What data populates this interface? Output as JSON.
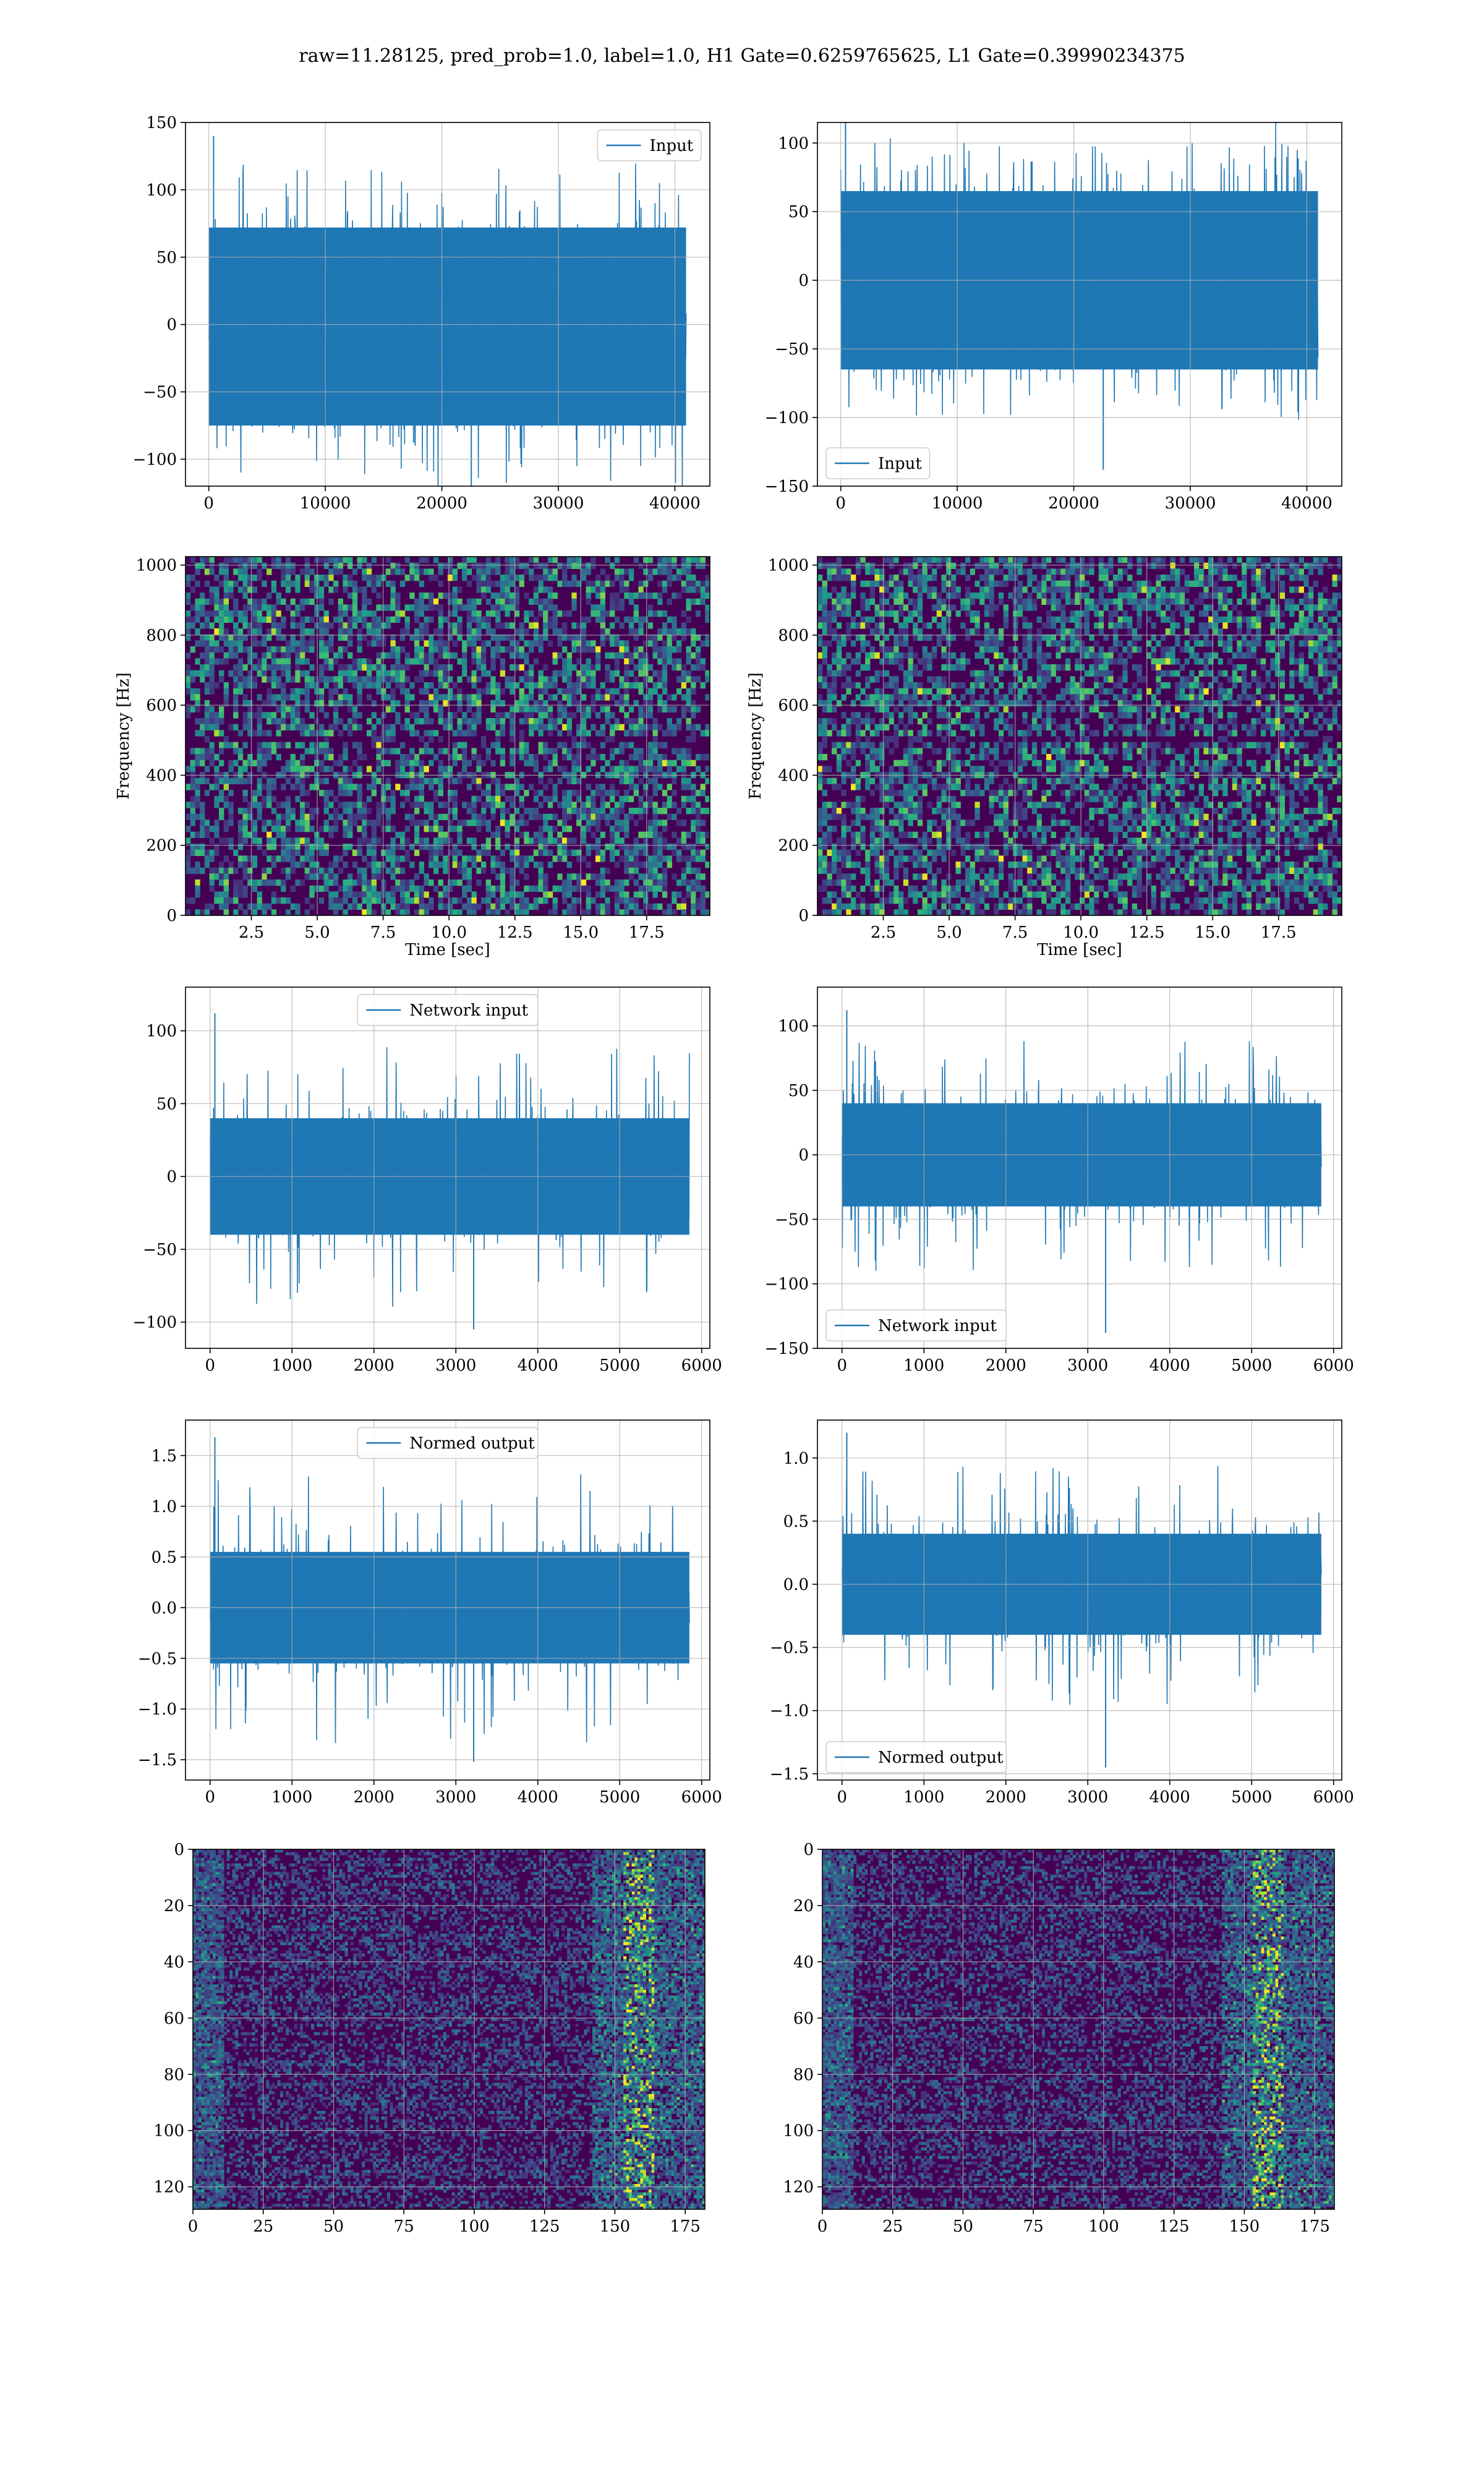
{
  "suptitle": "raw=11.28125, pred_prob=1.0, label=1.0, H1 Gate=0.6259765625, L1 Gate=0.39990234375",
  "colors": {
    "line": "#1f77b4",
    "grid": "#b0b0b0",
    "viridis_dark": "#440154",
    "viridis_bright": "#fde725"
  },
  "chart_data": [
    {
      "type": "line",
      "series": [
        {
          "name": "Input",
          "points": 40960
        }
      ],
      "xlim": [
        -2000,
        43000
      ],
      "ylim": [
        -120,
        150
      ],
      "xticks": [
        0,
        10000,
        20000,
        30000,
        40000
      ],
      "yticks": [
        -100,
        -50,
        0,
        50,
        100,
        150
      ],
      "xticklabels": [
        "0",
        "10000",
        "20000",
        "30000",
        "40000"
      ],
      "yticklabels": [
        "−100",
        "−50",
        "0",
        "50",
        "100",
        "150"
      ],
      "band": [
        -75,
        72
      ],
      "spike_max": 140,
      "spike_min": -122,
      "legend": "top-right",
      "grid": true,
      "xlabel": "",
      "ylabel": ""
    },
    {
      "type": "line",
      "series": [
        {
          "name": "Input",
          "points": 40960
        }
      ],
      "xlim": [
        -2000,
        43000
      ],
      "ylim": [
        -150,
        115
      ],
      "xticks": [
        0,
        10000,
        20000,
        30000,
        40000
      ],
      "yticks": [
        -150,
        -100,
        -50,
        0,
        50,
        100
      ],
      "xticklabels": [
        "0",
        "10000",
        "20000",
        "30000",
        "40000"
      ],
      "yticklabels": [
        "−150",
        "−100",
        "−50",
        "0",
        "50",
        "100"
      ],
      "band": [
        -65,
        65
      ],
      "spike_max": 118,
      "spike_min": -138,
      "legend": "bottom-left",
      "grid": true,
      "xlabel": "",
      "ylabel": ""
    },
    {
      "type": "heatmap",
      "xlim": [
        0,
        19.9
      ],
      "ylim": [
        0,
        1024
      ],
      "xticks": [
        2.5,
        5.0,
        7.5,
        10.0,
        12.5,
        15.0,
        17.5
      ],
      "yticks": [
        0,
        200,
        400,
        600,
        800,
        1000
      ],
      "xticklabels": [
        "2.5",
        "5.0",
        "7.5",
        "10.0",
        "12.5",
        "15.0",
        "17.5"
      ],
      "yticklabels": [
        "0",
        "200",
        "400",
        "600",
        "800",
        "1000"
      ],
      "xlabel": "Time [sec]",
      "ylabel": "Frequency [Hz]",
      "colormap": "viridis",
      "grid": true
    },
    {
      "type": "heatmap",
      "xlim": [
        0,
        19.9
      ],
      "ylim": [
        0,
        1024
      ],
      "xticks": [
        2.5,
        5.0,
        7.5,
        10.0,
        12.5,
        15.0,
        17.5
      ],
      "yticks": [
        0,
        200,
        400,
        600,
        800,
        1000
      ],
      "xticklabels": [
        "2.5",
        "5.0",
        "7.5",
        "10.0",
        "12.5",
        "15.0",
        "17.5"
      ],
      "yticklabels": [
        "0",
        "200",
        "400",
        "600",
        "800",
        "1000"
      ],
      "xlabel": "Time [sec]",
      "ylabel": "Frequency [Hz]",
      "colormap": "viridis",
      "grid": true
    },
    {
      "type": "line",
      "series": [
        {
          "name": "Network input",
          "points": 5850
        }
      ],
      "xlim": [
        -300,
        6100
      ],
      "ylim": [
        -118,
        130
      ],
      "xticks": [
        0,
        1000,
        2000,
        3000,
        4000,
        5000,
        6000
      ],
      "yticks": [
        -100,
        -50,
        0,
        50,
        100
      ],
      "xticklabels": [
        "0",
        "1000",
        "2000",
        "3000",
        "4000",
        "5000",
        "6000"
      ],
      "yticklabels": [
        "−100",
        "−50",
        "0",
        "50",
        "100"
      ],
      "band": [
        -40,
        40
      ],
      "spike_max": 112,
      "spike_min": -105,
      "legend": "top-center",
      "grid": true,
      "xlabel": "",
      "ylabel": ""
    },
    {
      "type": "line",
      "series": [
        {
          "name": "Network input",
          "points": 5850
        }
      ],
      "xlim": [
        -300,
        6100
      ],
      "ylim": [
        -150,
        130
      ],
      "xticks": [
        0,
        1000,
        2000,
        3000,
        4000,
        5000,
        6000
      ],
      "yticks": [
        -150,
        -100,
        -50,
        0,
        50,
        100
      ],
      "xticklabels": [
        "0",
        "1000",
        "2000",
        "3000",
        "4000",
        "5000",
        "6000"
      ],
      "yticklabels": [
        "−150",
        "−100",
        "−50",
        "0",
        "50",
        "100"
      ],
      "band": [
        -40,
        40
      ],
      "spike_max": 112,
      "spike_min": -138,
      "legend": "bottom-left",
      "grid": true,
      "xlabel": "",
      "ylabel": ""
    },
    {
      "type": "line",
      "series": [
        {
          "name": "Normed output",
          "points": 5850
        }
      ],
      "xlim": [
        -300,
        6100
      ],
      "ylim": [
        -1.7,
        1.85
      ],
      "xticks": [
        0,
        1000,
        2000,
        3000,
        4000,
        5000,
        6000
      ],
      "yticks": [
        -1.5,
        -1.0,
        -0.5,
        0.0,
        0.5,
        1.0,
        1.5
      ],
      "xticklabels": [
        "0",
        "1000",
        "2000",
        "3000",
        "4000",
        "5000",
        "6000"
      ],
      "yticklabels": [
        "−1.5",
        "−1.0",
        "−0.5",
        "0.0",
        "0.5",
        "1.0",
        "1.5"
      ],
      "band": [
        -0.55,
        0.55
      ],
      "spike_max": 1.68,
      "spike_min": -1.52,
      "legend": "top-center",
      "grid": true,
      "xlabel": "",
      "ylabel": ""
    },
    {
      "type": "line",
      "series": [
        {
          "name": "Normed output",
          "points": 5850
        }
      ],
      "xlim": [
        -300,
        6100
      ],
      "ylim": [
        -1.55,
        1.3
      ],
      "xticks": [
        0,
        1000,
        2000,
        3000,
        4000,
        5000,
        6000
      ],
      "yticks": [
        -1.5,
        -1.0,
        -0.5,
        0.0,
        0.5,
        1.0
      ],
      "xticklabels": [
        "0",
        "1000",
        "2000",
        "3000",
        "4000",
        "5000",
        "6000"
      ],
      "yticklabels": [
        "−1.5",
        "−1.0",
        "−0.5",
        "0.0",
        "0.5",
        "1.0"
      ],
      "band": [
        -0.4,
        0.4
      ],
      "spike_max": 1.2,
      "spike_min": -1.45,
      "legend": "bottom-left",
      "grid": true,
      "xlabel": "",
      "ylabel": ""
    },
    {
      "type": "heatmap",
      "xlim": [
        0,
        182
      ],
      "ylim": [
        128,
        0
      ],
      "xticks": [
        0,
        25,
        50,
        75,
        100,
        125,
        150,
        175
      ],
      "yticks": [
        0,
        20,
        40,
        60,
        80,
        100,
        120
      ],
      "xticklabels": [
        "0",
        "25",
        "50",
        "75",
        "100",
        "125",
        "150",
        "175"
      ],
      "yticklabels": [
        "0",
        "20",
        "40",
        "60",
        "80",
        "100",
        "120"
      ],
      "colormap": "viridis",
      "grid": true,
      "xlabel": "",
      "ylabel": ""
    },
    {
      "type": "heatmap",
      "xlim": [
        0,
        182
      ],
      "ylim": [
        128,
        0
      ],
      "xticks": [
        0,
        25,
        50,
        75,
        100,
        125,
        150,
        175
      ],
      "yticks": [
        0,
        20,
        40,
        60,
        80,
        100,
        120
      ],
      "xticklabels": [
        "0",
        "25",
        "50",
        "75",
        "100",
        "125",
        "150",
        "175"
      ],
      "yticklabels": [
        "0",
        "20",
        "40",
        "60",
        "80",
        "100",
        "120"
      ],
      "colormap": "viridis",
      "grid": true,
      "xlabel": "",
      "ylabel": ""
    }
  ]
}
